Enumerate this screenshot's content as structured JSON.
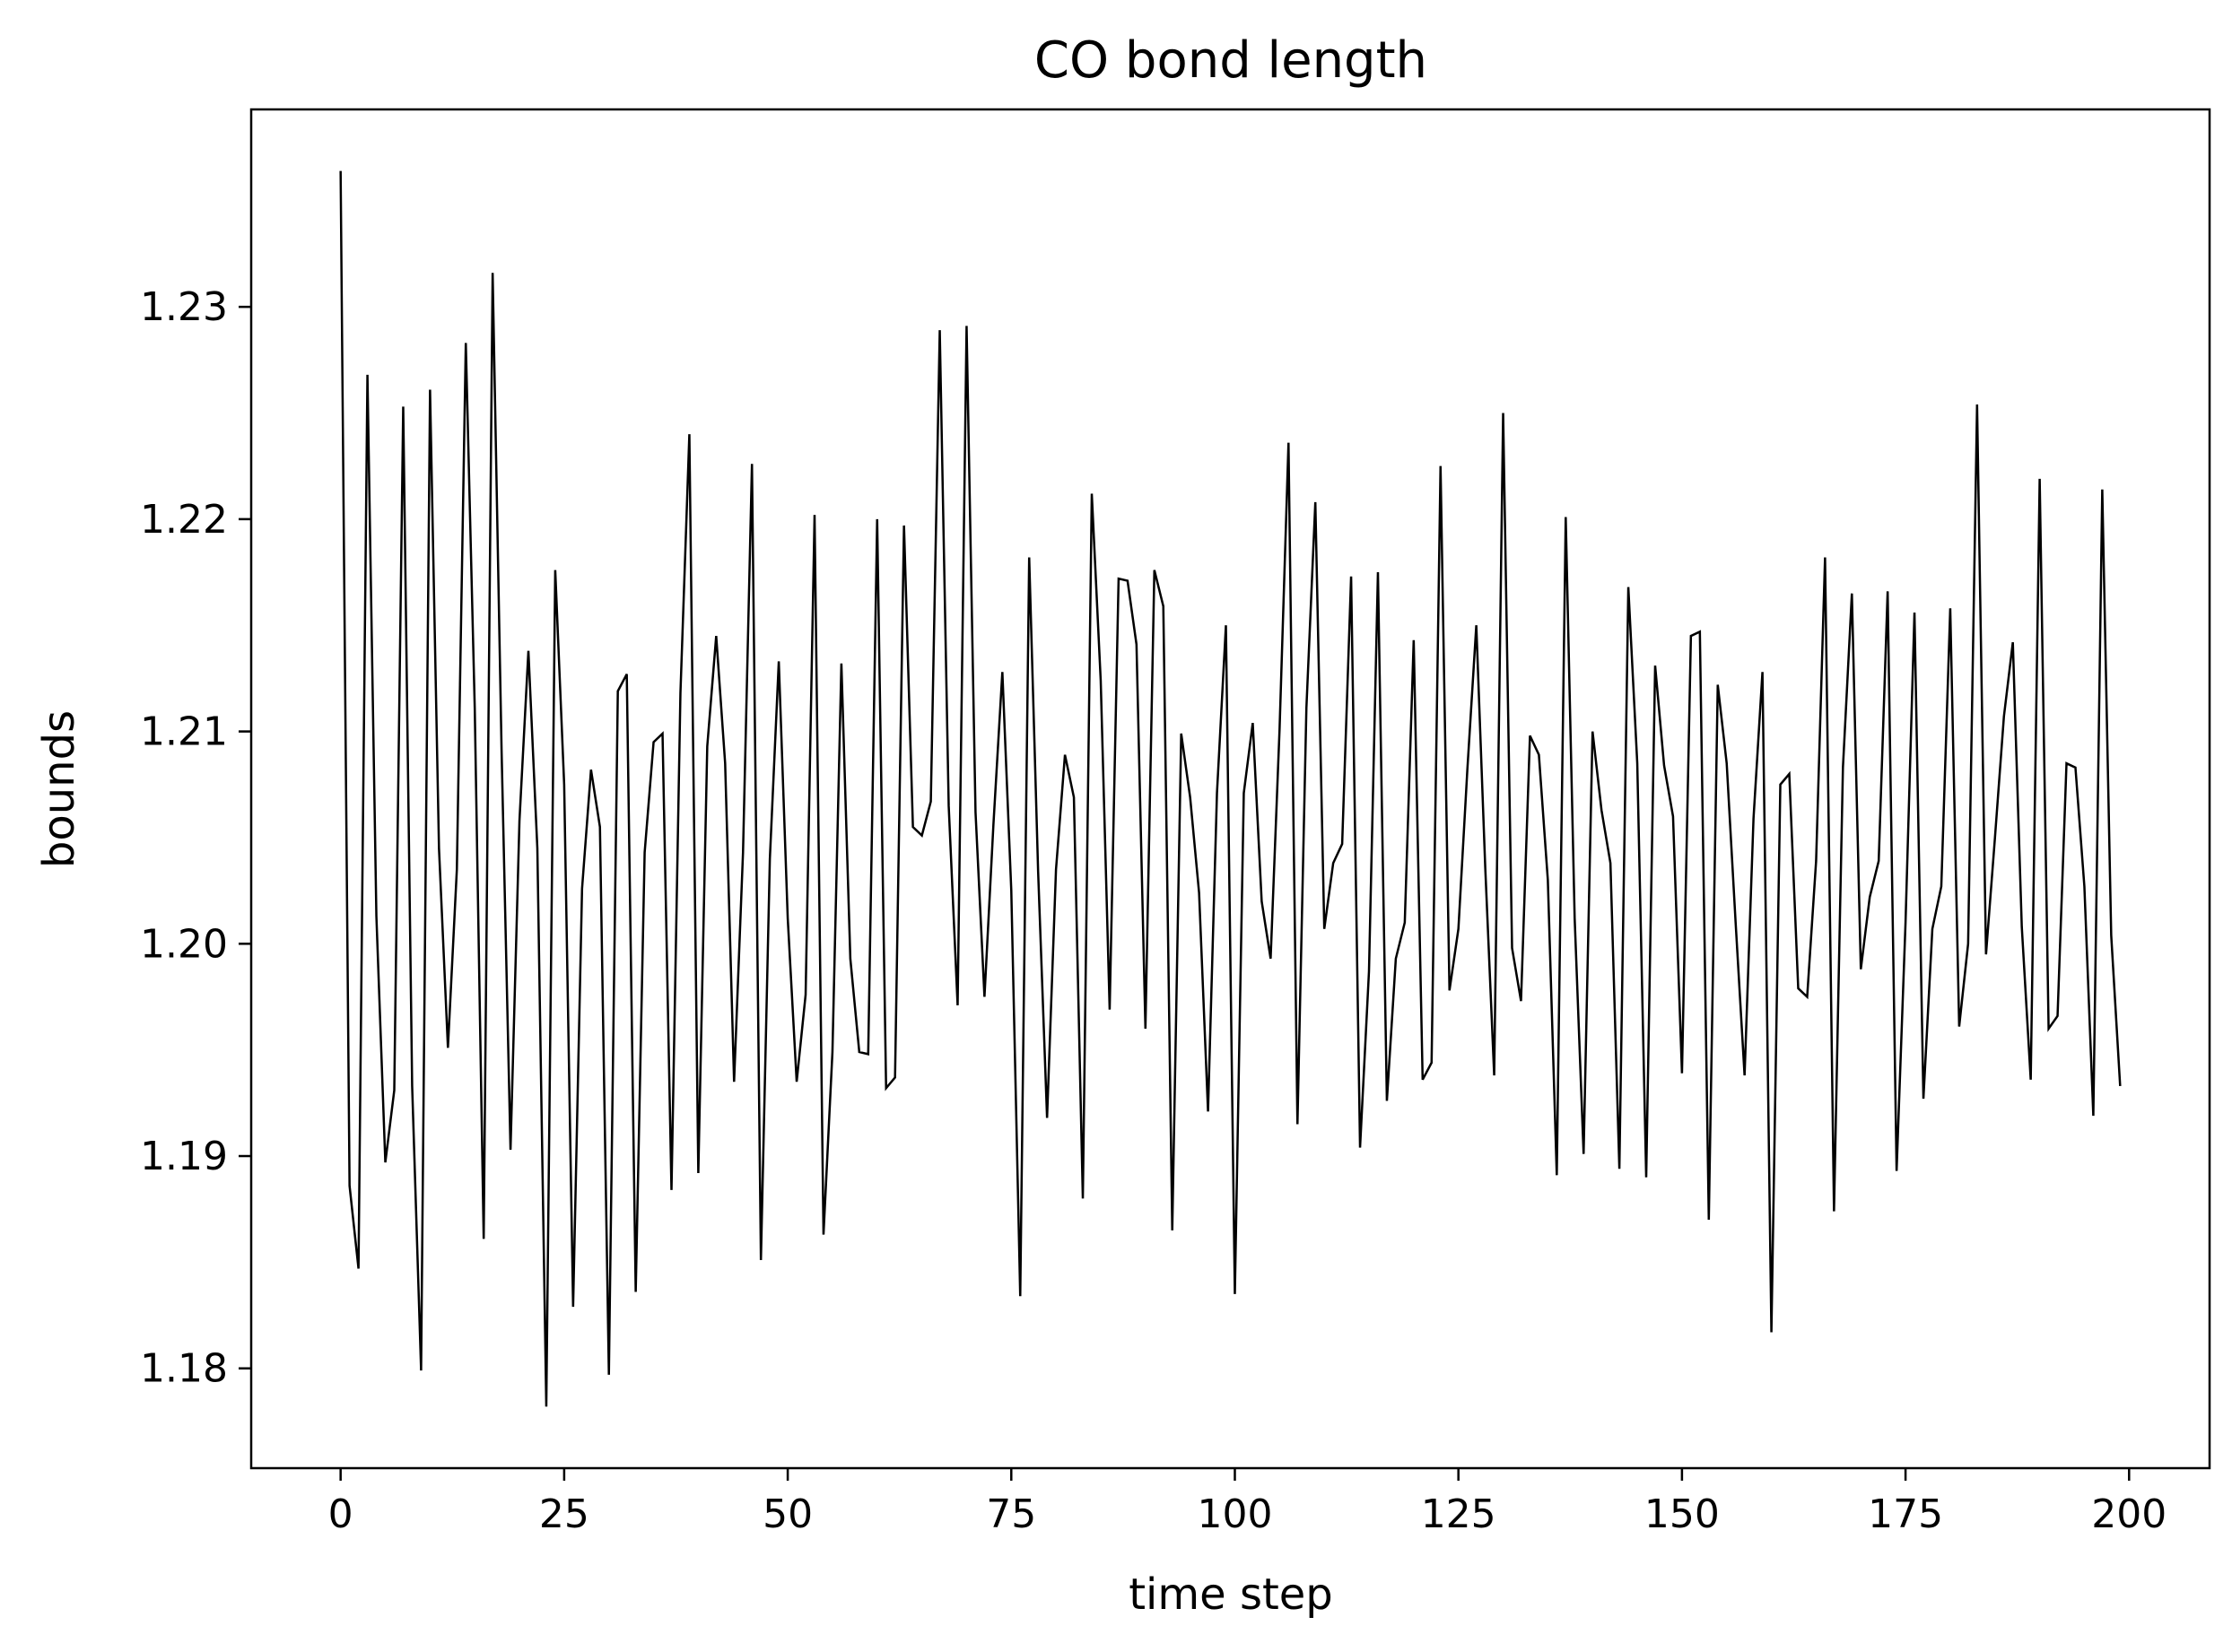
{
  "chart_data": {
    "type": "line",
    "title": "CO bond length",
    "xlabel": "time step",
    "ylabel": "bounds",
    "xlim": [
      -10,
      209
    ],
    "ylim": [
      1.1753,
      1.2393
    ],
    "xticks": [
      0,
      25,
      50,
      75,
      100,
      125,
      150,
      175,
      200
    ],
    "yticks": [
      1.18,
      1.19,
      1.2,
      1.21,
      1.22,
      1.23
    ],
    "xtick_labels": [
      "0",
      "25",
      "50",
      "75",
      "100",
      "125",
      "150",
      "175",
      "200"
    ],
    "ytick_labels": [
      "1.18",
      "1.19",
      "1.20",
      "1.21",
      "1.22",
      "1.23"
    ],
    "grid": false,
    "line_color": "#000000",
    "series": [
      {
        "x_start": 0,
        "x_step": 1,
        "values": [
          1.2364,
          1.1886,
          1.1847,
          1.2268,
          1.2013,
          1.1897,
          1.1931,
          1.2253,
          1.1933,
          1.1799,
          1.2261,
          1.2045,
          1.1951,
          1.2035,
          1.2283,
          1.2111,
          1.1861,
          1.2316,
          1.2091,
          1.1903,
          1.2058,
          1.2138,
          1.2045,
          1.1782,
          1.2176,
          1.2075,
          1.1829,
          1.2026,
          1.2082,
          1.2055,
          1.1797,
          1.2119,
          1.2127,
          1.1836,
          1.2043,
          1.2095,
          1.2099,
          1.1884,
          1.2118,
          1.224,
          1.1892,
          1.2093,
          1.2145,
          1.2085,
          1.1935,
          1.2043,
          1.2226,
          1.1851,
          1.204,
          1.2133,
          1.2012,
          1.1935,
          1.1976,
          1.2202,
          1.1863,
          1.1949,
          1.2132,
          1.1993,
          1.1949,
          1.1948,
          1.22,
          1.1932,
          1.1937,
          1.2197,
          1.2055,
          1.2051,
          1.2067,
          1.2289,
          1.2065,
          1.1971,
          1.2291,
          1.2062,
          1.1975,
          1.2056,
          1.2128,
          1.2025,
          1.1834,
          1.2182,
          1.2034,
          1.1918,
          1.2035,
          1.2089,
          1.2069,
          1.188,
          1.2212,
          1.2124,
          1.1969,
          1.2172,
          1.2171,
          1.2141,
          1.196,
          1.2176,
          1.2159,
          1.1865,
          1.2099,
          1.2069,
          1.2024,
          1.1921,
          1.2071,
          1.215,
          1.1835,
          1.2071,
          1.2104,
          1.202,
          1.1993,
          1.2101,
          1.2236,
          1.1915,
          1.2111,
          1.2208,
          1.2007,
          1.2038,
          1.2047,
          1.2173,
          1.1904,
          1.1987,
          1.2175,
          1.1926,
          1.1993,
          1.201,
          1.2143,
          1.1936,
          1.1944,
          1.2225,
          1.1978,
          1.2007,
          1.2082,
          1.215,
          1.2036,
          1.1938,
          1.225,
          1.1998,
          1.1973,
          1.2098,
          1.2089,
          1.203,
          1.1891,
          1.2201,
          1.2012,
          1.1901,
          1.21,
          1.2063,
          1.2038,
          1.1894,
          1.2168,
          1.2085,
          1.189,
          1.2131,
          1.2084,
          1.206,
          1.1939,
          1.2145,
          1.2147,
          1.187,
          1.2122,
          1.2085,
          1.201,
          1.1938,
          1.2059,
          1.2128,
          1.1817,
          1.2075,
          1.208,
          1.1979,
          1.1975,
          1.2039,
          1.2182,
          1.1874,
          1.2083,
          1.2165,
          1.1988,
          1.2022,
          1.2039,
          1.2166,
          1.1893,
          1.201,
          1.2156,
          1.1927,
          1.2007,
          1.2027,
          1.2158,
          1.1961,
          1.2,
          1.2254,
          1.1995,
          1.205,
          1.2107,
          1.2142,
          1.2008,
          1.1936,
          1.2219,
          1.196,
          1.1966,
          1.2085,
          1.2083,
          1.2027,
          1.1919,
          1.2214,
          1.2004,
          1.1933
        ]
      }
    ]
  }
}
